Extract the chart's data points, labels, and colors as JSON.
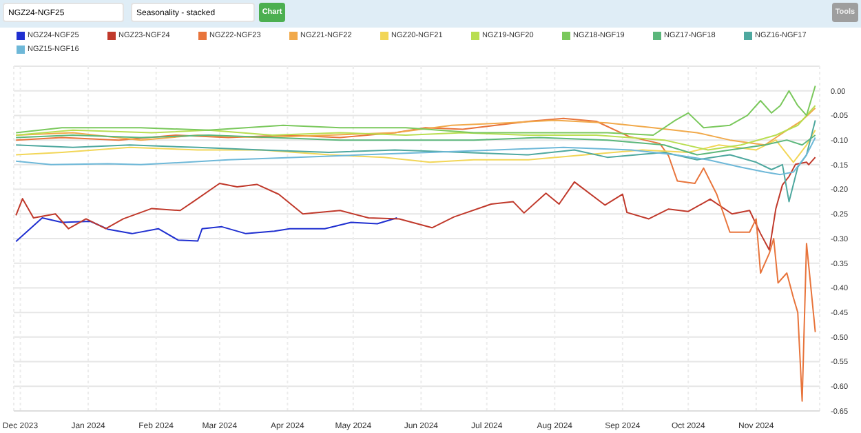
{
  "chart_data": {
    "type": "line",
    "annotations": [
      "NGZ24-NGF25",
      "Seasonality - stacked",
      "Chart",
      "Tools"
    ],
    "xlim": [
      "2023-11-28",
      "2024-11-30"
    ],
    "xticks": [
      {
        "value": "2023-12-01",
        "label": "Dec 2023"
      },
      {
        "value": "2024-01-01",
        "label": "Jan 2024"
      },
      {
        "value": "2024-02-01",
        "label": "Feb 2024"
      },
      {
        "value": "2024-03-01",
        "label": "Mar 2024"
      },
      {
        "value": "2024-04-01",
        "label": "Apr 2024"
      },
      {
        "value": "2024-05-01",
        "label": "May 2024"
      },
      {
        "value": "2024-06-01",
        "label": "Jun 2024"
      },
      {
        "value": "2024-07-01",
        "label": "Jul 2024"
      },
      {
        "value": "2024-08-01",
        "label": "Aug 2024"
      },
      {
        "value": "2024-09-01",
        "label": "Sep 2024"
      },
      {
        "value": "2024-10-01",
        "label": "Oct 2024"
      },
      {
        "value": "2024-11-01",
        "label": "Nov 2024"
      }
    ],
    "ylim": [
      -0.65,
      0.05
    ],
    "yticks": [
      {
        "value": 0.05,
        "label": null
      },
      {
        "value": 0,
        "label": "0.00"
      },
      {
        "value": -0.05,
        "label": "-0.05"
      },
      {
        "value": -0.1,
        "label": "-0.10"
      },
      {
        "value": -0.15,
        "label": "-0.15"
      },
      {
        "value": -0.2,
        "label": "-0.20"
      },
      {
        "value": -0.25,
        "label": "-0.25"
      },
      {
        "value": -0.3,
        "label": "-0.30"
      },
      {
        "value": -0.35,
        "label": "-0.35"
      },
      {
        "value": -0.4,
        "label": "-0.40"
      },
      {
        "value": -0.45,
        "label": "-0.45"
      },
      {
        "value": -0.5,
        "label": "-0.50"
      },
      {
        "value": -0.55,
        "label": "-0.55"
      },
      {
        "value": -0.6,
        "label": "-0.60"
      },
      {
        "value": -0.65,
        "label": "-0.65"
      }
    ],
    "grid": true,
    "legend": "top",
    "marker": "none",
    "series": [
      {
        "name": "NGZ24-NGF25",
        "color": "#1f2fd0",
        "x": [
          "2023-11-29",
          "2023-12-11",
          "2023-12-20",
          "2024-01-02",
          "2024-01-10",
          "2024-01-21",
          "2024-02-02",
          "2024-02-11",
          "2024-02-20",
          "2024-02-22",
          "2024-03-02",
          "2024-03-13",
          "2024-03-26",
          "2024-04-02",
          "2024-04-18",
          "2024-04-30",
          "2024-05-12",
          "2024-05-21"
        ],
        "values": [
          -0.306,
          -0.258,
          -0.267,
          -0.265,
          -0.281,
          -0.29,
          -0.28,
          -0.303,
          -0.305,
          -0.28,
          -0.276,
          -0.29,
          -0.285,
          -0.28,
          -0.28,
          -0.267,
          -0.27,
          -0.258
        ]
      },
      {
        "name": "NGZ23-NGF24",
        "color": "#c0392b",
        "x": [
          "2023-11-29",
          "2023-12-02",
          "2023-12-07",
          "2023-12-17",
          "2023-12-23",
          "2023-12-31",
          "2024-01-09",
          "2024-01-17",
          "2024-01-30",
          "2024-02-12",
          "2024-02-18",
          "2024-03-01",
          "2024-03-09",
          "2024-03-18",
          "2024-03-28",
          "2024-04-08",
          "2024-04-25",
          "2024-05-08",
          "2024-05-22",
          "2024-06-06",
          "2024-06-16",
          "2024-07-03",
          "2024-07-13",
          "2024-07-18",
          "2024-07-28",
          "2024-08-03",
          "2024-08-10",
          "2024-08-24",
          "2024-09-01",
          "2024-09-03",
          "2024-09-13",
          "2024-09-22",
          "2024-10-01",
          "2024-10-11",
          "2024-10-21",
          "2024-10-29",
          "2024-11-03",
          "2024-11-07",
          "2024-11-10",
          "2024-11-13",
          "2024-11-16",
          "2024-11-19",
          "2024-11-24",
          "2024-11-25",
          "2024-11-28"
        ],
        "values": [
          -0.253,
          -0.219,
          -0.258,
          -0.25,
          -0.28,
          -0.26,
          -0.28,
          -0.26,
          -0.239,
          -0.243,
          -0.225,
          -0.188,
          -0.195,
          -0.19,
          -0.21,
          -0.25,
          -0.243,
          -0.258,
          -0.26,
          -0.278,
          -0.256,
          -0.23,
          -0.225,
          -0.248,
          -0.208,
          -0.23,
          -0.185,
          -0.232,
          -0.21,
          -0.247,
          -0.26,
          -0.24,
          -0.245,
          -0.22,
          -0.25,
          -0.243,
          -0.29,
          -0.323,
          -0.239,
          -0.191,
          -0.174,
          -0.149,
          -0.145,
          -0.15,
          -0.135
        ]
      },
      {
        "name": "NGZ22-NGF23",
        "color": "#e8743b",
        "x": [
          "2023-11-29",
          "2023-12-20",
          "2024-01-15",
          "2024-02-10",
          "2024-03-05",
          "2024-04-01",
          "2024-04-25",
          "2024-05-20",
          "2024-06-03",
          "2024-06-20",
          "2024-07-20",
          "2024-08-05",
          "2024-08-20",
          "2024-09-04",
          "2024-09-18",
          "2024-09-22",
          "2024-09-26",
          "2024-10-04",
          "2024-10-08",
          "2024-10-14",
          "2024-10-20",
          "2024-10-29",
          "2024-11-01",
          "2024-11-03",
          "2024-11-07",
          "2024-11-09",
          "2024-11-11",
          "2024-11-15",
          "2024-11-18",
          "2024-11-20",
          "2024-11-22",
          "2024-11-24",
          "2024-11-28"
        ],
        "values": [
          -0.1,
          -0.095,
          -0.1,
          -0.09,
          -0.095,
          -0.09,
          -0.095,
          -0.085,
          -0.075,
          -0.078,
          -0.062,
          -0.056,
          -0.062,
          -0.093,
          -0.107,
          -0.132,
          -0.183,
          -0.188,
          -0.157,
          -0.21,
          -0.287,
          -0.287,
          -0.26,
          -0.37,
          -0.33,
          -0.3,
          -0.39,
          -0.37,
          -0.42,
          -0.45,
          -0.63,
          -0.31,
          -0.49
        ]
      },
      {
        "name": "NGZ21-NGF22",
        "color": "#f1a94a",
        "x": [
          "2023-11-29",
          "2023-12-25",
          "2024-01-25",
          "2024-02-20",
          "2024-03-20",
          "2024-04-20",
          "2024-05-20",
          "2024-06-15",
          "2024-07-10",
          "2024-08-01",
          "2024-08-25",
          "2024-09-15",
          "2024-10-05",
          "2024-10-20",
          "2024-11-05",
          "2024-11-15",
          "2024-11-22",
          "2024-11-28"
        ],
        "values": [
          -0.09,
          -0.085,
          -0.1,
          -0.09,
          -0.095,
          -0.09,
          -0.085,
          -0.07,
          -0.065,
          -0.06,
          -0.065,
          -0.075,
          -0.085,
          -0.1,
          -0.11,
          -0.08,
          -0.06,
          -0.035
        ]
      },
      {
        "name": "NGZ20-NGF21",
        "color": "#f2d657",
        "x": [
          "2023-11-29",
          "2023-12-20",
          "2024-01-20",
          "2024-02-20",
          "2024-03-20",
          "2024-04-20",
          "2024-05-15",
          "2024-06-05",
          "2024-06-25",
          "2024-07-20",
          "2024-08-15",
          "2024-09-10",
          "2024-10-01",
          "2024-10-15",
          "2024-11-01",
          "2024-11-10",
          "2024-11-18",
          "2024-11-24",
          "2024-11-28"
        ],
        "values": [
          -0.13,
          -0.125,
          -0.115,
          -0.12,
          -0.12,
          -0.13,
          -0.135,
          -0.145,
          -0.14,
          -0.14,
          -0.13,
          -0.12,
          -0.125,
          -0.11,
          -0.12,
          -0.1,
          -0.145,
          -0.11,
          -0.08
        ]
      },
      {
        "name": "NGZ19-NGF20",
        "color": "#b9de51",
        "x": [
          "2023-11-29",
          "2023-12-25",
          "2024-01-30",
          "2024-02-25",
          "2024-03-25",
          "2024-04-25",
          "2024-05-25",
          "2024-06-20",
          "2024-07-20",
          "2024-08-20",
          "2024-09-20",
          "2024-10-10",
          "2024-10-25",
          "2024-11-10",
          "2024-11-20",
          "2024-11-28"
        ],
        "values": [
          -0.09,
          -0.08,
          -0.085,
          -0.08,
          -0.09,
          -0.085,
          -0.09,
          -0.085,
          -0.09,
          -0.09,
          -0.1,
          -0.12,
          -0.11,
          -0.09,
          -0.07,
          -0.03
        ]
      },
      {
        "name": "NGZ18-NGF19",
        "color": "#7ac85c",
        "x": [
          "2023-11-29",
          "2023-12-20",
          "2024-01-25",
          "2024-02-25",
          "2024-03-30",
          "2024-04-25",
          "2024-05-25",
          "2024-06-25",
          "2024-07-25",
          "2024-08-25",
          "2024-09-15",
          "2024-09-25",
          "2024-10-01",
          "2024-10-08",
          "2024-10-20",
          "2024-10-28",
          "2024-11-03",
          "2024-11-08",
          "2024-11-12",
          "2024-11-16",
          "2024-11-20",
          "2024-11-24",
          "2024-11-28"
        ],
        "values": [
          -0.085,
          -0.075,
          -0.075,
          -0.08,
          -0.07,
          -0.075,
          -0.075,
          -0.085,
          -0.085,
          -0.085,
          -0.09,
          -0.06,
          -0.045,
          -0.075,
          -0.07,
          -0.05,
          -0.02,
          -0.045,
          -0.03,
          0,
          -0.03,
          -0.05,
          0.01
        ]
      },
      {
        "name": "NGZ17-NGF18",
        "color": "#5bb77b",
        "x": [
          "2023-11-29",
          "2023-12-25",
          "2024-01-25",
          "2024-02-25",
          "2024-03-25",
          "2024-04-25",
          "2024-05-25",
          "2024-06-25",
          "2024-07-25",
          "2024-08-25",
          "2024-09-20",
          "2024-10-05",
          "2024-10-20",
          "2024-11-05",
          "2024-11-15",
          "2024-11-22",
          "2024-11-28"
        ],
        "values": [
          -0.095,
          -0.09,
          -0.095,
          -0.09,
          -0.095,
          -0.1,
          -0.1,
          -0.1,
          -0.095,
          -0.1,
          -0.11,
          -0.13,
          -0.12,
          -0.11,
          -0.1,
          -0.11,
          -0.09
        ]
      },
      {
        "name": "NGZ16-NGF17",
        "color": "#4ea89f",
        "x": [
          "2023-11-29",
          "2023-12-25",
          "2024-01-20",
          "2024-02-20",
          "2024-03-20",
          "2024-04-20",
          "2024-05-20",
          "2024-06-20",
          "2024-07-20",
          "2024-08-10",
          "2024-08-25",
          "2024-09-20",
          "2024-10-05",
          "2024-10-20",
          "2024-11-01",
          "2024-11-08",
          "2024-11-13",
          "2024-11-16",
          "2024-11-20",
          "2024-11-24",
          "2024-11-28"
        ],
        "values": [
          -0.11,
          -0.115,
          -0.11,
          -0.115,
          -0.12,
          -0.125,
          -0.12,
          -0.125,
          -0.13,
          -0.12,
          -0.135,
          -0.125,
          -0.14,
          -0.13,
          -0.145,
          -0.16,
          -0.15,
          -0.225,
          -0.155,
          -0.13,
          -0.06
        ]
      },
      {
        "name": "NGZ15-NGF16",
        "color": "#6eb8d8",
        "x": [
          "2023-11-29",
          "2023-12-15",
          "2024-01-10",
          "2024-01-25",
          "2024-02-15",
          "2024-03-05",
          "2024-04-05",
          "2024-05-05",
          "2024-06-05",
          "2024-07-05",
          "2024-08-05",
          "2024-09-05",
          "2024-09-25",
          "2024-10-10",
          "2024-10-25",
          "2024-11-05",
          "2024-11-12",
          "2024-11-18",
          "2024-11-24",
          "2024-11-28"
        ],
        "values": [
          -0.143,
          -0.15,
          -0.148,
          -0.15,
          -0.145,
          -0.14,
          -0.135,
          -0.13,
          -0.125,
          -0.12,
          -0.115,
          -0.12,
          -0.13,
          -0.14,
          -0.155,
          -0.165,
          -0.17,
          -0.165,
          -0.13,
          -0.095
        ]
      }
    ]
  }
}
